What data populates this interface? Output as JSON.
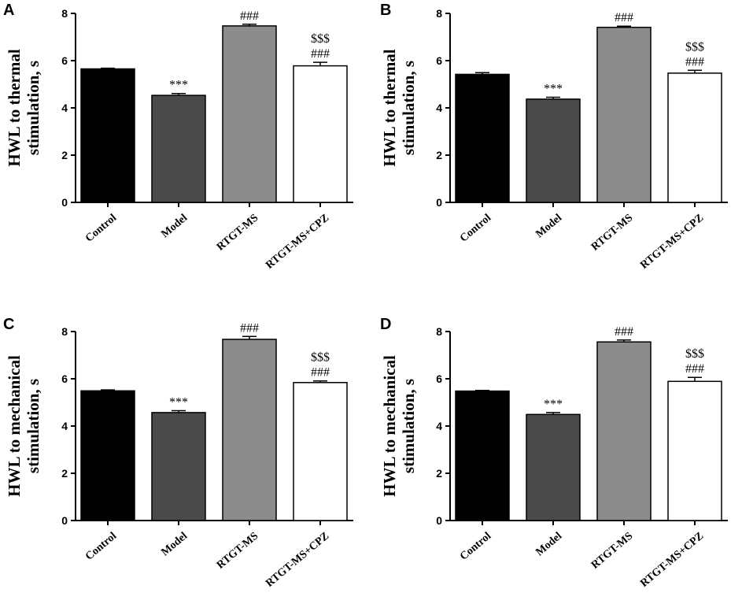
{
  "chart_data": [
    {
      "panel": "A",
      "type": "bar",
      "categories": [
        "Control",
        "Model",
        "RTGT-MS",
        "RTGT-MS+CPZ"
      ],
      "values": [
        5.65,
        4.53,
        7.47,
        5.78
      ],
      "errors": [
        0.03,
        0.08,
        0.07,
        0.15
      ],
      "ylabel": [
        "HWL to thermal",
        "stimulation, s"
      ],
      "ylim": [
        0,
        8
      ],
      "yticks": [
        "0",
        "2",
        "4",
        "6",
        "8"
      ],
      "annotations": [
        [],
        [
          "***"
        ],
        [
          "###"
        ],
        [
          "$$$",
          "###"
        ]
      ]
    },
    {
      "panel": "B",
      "type": "bar",
      "categories": [
        "Control",
        "Model",
        "RTGT-MS",
        "RTGT-MS+CPZ"
      ],
      "values": [
        5.42,
        4.37,
        7.41,
        5.47
      ],
      "errors": [
        0.07,
        0.08,
        0.05,
        0.12
      ],
      "ylabel": [
        "HWL to thermal",
        "stimulation, s"
      ],
      "ylim": [
        0,
        8
      ],
      "yticks": [
        "0",
        "2",
        "4",
        "6",
        "8"
      ],
      "annotations": [
        [],
        [
          "***"
        ],
        [
          "###"
        ],
        [
          "$$$",
          "###"
        ]
      ]
    },
    {
      "panel": "C",
      "type": "bar",
      "categories": [
        "Control",
        "Model",
        "RTGT-MS",
        "RTGT-MS+CPZ"
      ],
      "values": [
        5.49,
        4.57,
        7.67,
        5.84
      ],
      "errors": [
        0.04,
        0.08,
        0.12,
        0.07
      ],
      "ylabel": [
        "HWL to mechanical",
        "stimulation, s"
      ],
      "ylim": [
        0,
        8
      ],
      "yticks": [
        "0",
        "2",
        "4",
        "6",
        "8"
      ],
      "annotations": [
        [],
        [
          "***"
        ],
        [
          "###"
        ],
        [
          "$$$",
          "###"
        ]
      ]
    },
    {
      "panel": "D",
      "type": "bar",
      "categories": [
        "Control",
        "Model",
        "RTGT-MS",
        "RTGT-MS+CPZ"
      ],
      "values": [
        5.48,
        4.49,
        7.56,
        5.89
      ],
      "errors": [
        0.03,
        0.08,
        0.08,
        0.17
      ],
      "ylabel": [
        "HWL to mechanical",
        "stimulation, s"
      ],
      "ylim": [
        0,
        8
      ],
      "yticks": [
        "0",
        "2",
        "4",
        "6",
        "8"
      ],
      "annotations": [
        [],
        [
          "***"
        ],
        [
          "###"
        ],
        [
          "$$$",
          "###"
        ]
      ]
    }
  ],
  "colors": {
    "bar_fills": [
      "#000000",
      "#4a4a4a",
      "#8c8c8c",
      "#ffffff"
    ],
    "stroke": "#000000"
  }
}
